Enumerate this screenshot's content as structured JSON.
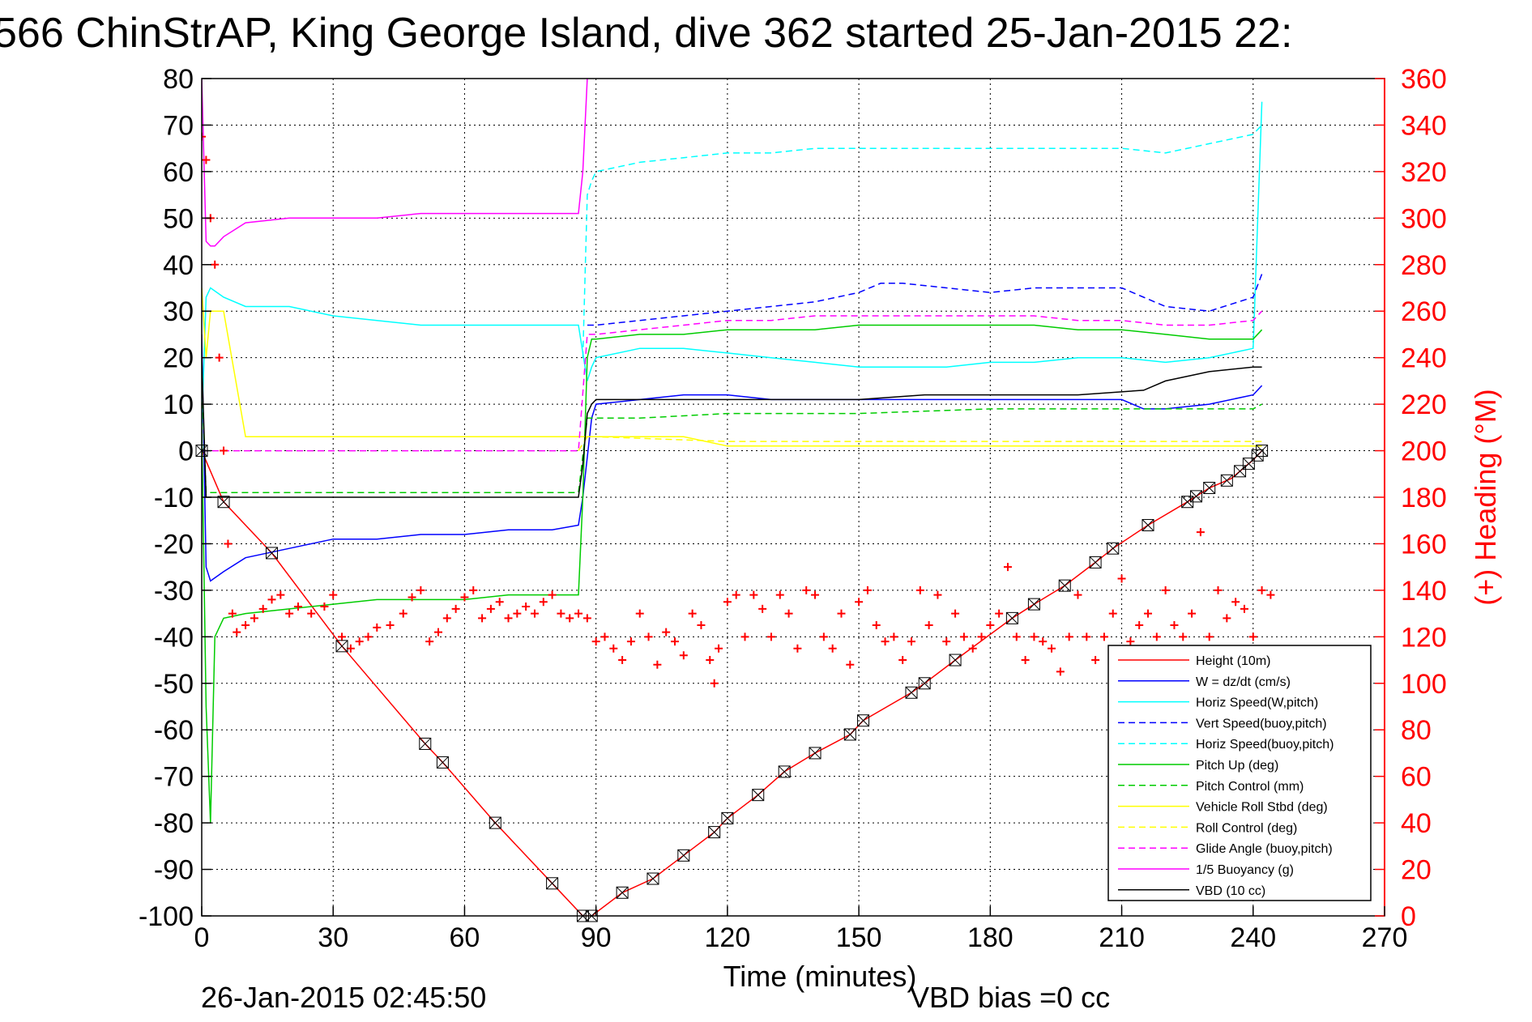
{
  "chart_data": {
    "type": "line",
    "title": "566 ChinStrAP, King George Island, dive 362 started 25-Jan-2015 22:",
    "xlabel": "Time (minutes)",
    "ylabel_right": "(+) Heading (°M)",
    "xlim": [
      0,
      270
    ],
    "ylim_left": [
      -100,
      80
    ],
    "ylim_right": [
      0,
      360
    ],
    "x_ticks": [
      "0",
      "30",
      "60",
      "90",
      "120",
      "150",
      "180",
      "210",
      "240",
      "270"
    ],
    "y_left_ticks": [
      "80",
      "70",
      "60",
      "50",
      "40",
      "30",
      "20",
      "10",
      "0",
      "-10",
      "-20",
      "-30",
      "-40",
      "-50",
      "-60",
      "-70",
      "-80",
      "-90",
      "-100"
    ],
    "y_right_ticks": [
      "360",
      "340",
      "320",
      "300",
      "280",
      "260",
      "240",
      "220",
      "200",
      "180",
      "160",
      "140",
      "120",
      "100",
      "80",
      "60",
      "40",
      "20",
      "0"
    ],
    "grid": true,
    "legend_position": "bottom-right",
    "footer_date": "26-Jan-2015 02:45:50",
    "footer_vbd": "VBD bias =0 cc",
    "legend": [
      {
        "label": "Height (10m)",
        "color": "#ff0000",
        "dash": "solid"
      },
      {
        "label": "W = dz/dt (cm/s)",
        "color": "#0000ff",
        "dash": "solid"
      },
      {
        "label": "Horiz Speed(W,pitch)",
        "color": "#00ffff",
        "dash": "solid"
      },
      {
        "label": "Vert Speed(buoy,pitch)",
        "color": "#0000ff",
        "dash": "dashed"
      },
      {
        "label": "Horiz Speed(buoy,pitch)",
        "color": "#00ffff",
        "dash": "dashed"
      },
      {
        "label": "Pitch Up (deg)",
        "color": "#00cc00",
        "dash": "solid"
      },
      {
        "label": "Pitch Control (mm)",
        "color": "#00cc00",
        "dash": "dashed"
      },
      {
        "label": "Vehicle Roll Stbd (deg)",
        "color": "#ffff00",
        "dash": "solid"
      },
      {
        "label": "Roll Control (deg)",
        "color": "#ffff00",
        "dash": "dashed"
      },
      {
        "label": "Glide Angle (buoy,pitch)",
        "color": "#ff00ff",
        "dash": "dashed"
      },
      {
        "label": "1/5 Buoyancy (g)",
        "color": "#ff00ff",
        "dash": "solid"
      },
      {
        "label": "VBD (10 cc)",
        "color": "#000000",
        "dash": "solid"
      }
    ],
    "series": [
      {
        "name": "Height (10m)",
        "axis": "left",
        "color": "#ff0000",
        "dash": "solid",
        "x": [
          0,
          5,
          16,
          32,
          51,
          55,
          67,
          80,
          87,
          89,
          96,
          103,
          110,
          117,
          120,
          127,
          133,
          140,
          148,
          151,
          162,
          165,
          172,
          185,
          190,
          197,
          204,
          208,
          216,
          225,
          230,
          235,
          240,
          242
        ],
        "y": [
          0,
          -11,
          -22,
          -42,
          -63,
          -67,
          -80,
          -93,
          -100,
          -100,
          -95,
          -92,
          -87,
          -82,
          -79,
          -74,
          -69,
          -65,
          -61,
          -58,
          -52,
          -50,
          -45,
          -36,
          -33,
          -29,
          -24,
          -21,
          -16,
          -11,
          -8,
          -6,
          -2,
          0
        ]
      },
      {
        "name": "W = dz/dt (cm/s)",
        "axis": "left",
        "color": "#0000ff",
        "dash": "solid",
        "x": [
          0,
          1,
          2,
          5,
          10,
          20,
          30,
          40,
          50,
          60,
          70,
          80,
          86,
          87,
          89,
          90,
          100,
          110,
          120,
          130,
          140,
          150,
          160,
          170,
          180,
          190,
          200,
          210,
          215,
          220,
          230,
          240,
          242
        ],
        "y": [
          25,
          -25,
          -28,
          -26,
          -23,
          -21,
          -19,
          -19,
          -18,
          -18,
          -17,
          -17,
          -16,
          -10,
          7,
          10,
          11,
          12,
          12,
          11,
          11,
          11,
          11,
          11,
          11,
          11,
          11,
          11,
          9,
          9,
          10,
          12,
          14
        ]
      },
      {
        "name": "Horiz Speed(W,pitch)",
        "axis": "left",
        "color": "#00ffff",
        "dash": "solid",
        "x": [
          0,
          1,
          2,
          5,
          10,
          20,
          30,
          40,
          50,
          60,
          70,
          80,
          86,
          88,
          89,
          90,
          100,
          110,
          120,
          130,
          140,
          150,
          160,
          170,
          180,
          190,
          200,
          210,
          220,
          230,
          240,
          242
        ],
        "y": [
          5,
          33,
          35,
          33,
          31,
          31,
          29,
          28,
          27,
          27,
          27,
          27,
          27,
          15,
          18,
          20,
          22,
          22,
          21,
          20,
          19,
          18,
          18,
          18,
          19,
          19,
          20,
          20,
          19,
          20,
          22,
          75
        ]
      },
      {
        "name": "Vert Speed(buoy,pitch)",
        "axis": "left",
        "color": "#0000ff",
        "dash": "dashed",
        "x": [
          88,
          90,
          100,
          110,
          120,
          130,
          140,
          150,
          155,
          160,
          170,
          180,
          190,
          200,
          210,
          215,
          220,
          230,
          240,
          242
        ],
        "y": [
          27,
          27,
          28,
          29,
          30,
          31,
          32,
          34,
          36,
          36,
          35,
          34,
          35,
          35,
          35,
          33,
          31,
          30,
          33,
          38
        ]
      },
      {
        "name": "Horiz Speed(buoy,pitch)",
        "axis": "left",
        "color": "#00ffff",
        "dash": "dashed",
        "x": [
          87,
          88,
          89,
          90,
          100,
          110,
          120,
          130,
          140,
          150,
          160,
          170,
          180,
          190,
          200,
          210,
          220,
          230,
          240,
          242
        ],
        "y": [
          20,
          55,
          58,
          60,
          62,
          63,
          64,
          64,
          65,
          65,
          65,
          65,
          65,
          65,
          65,
          65,
          64,
          66,
          68,
          70
        ]
      },
      {
        "name": "Pitch Up (deg)",
        "axis": "left",
        "color": "#00cc00",
        "dash": "solid",
        "x": [
          0,
          1,
          2,
          3,
          5,
          10,
          20,
          30,
          40,
          50,
          60,
          70,
          80,
          86,
          87,
          88,
          89,
          90,
          100,
          110,
          120,
          130,
          140,
          150,
          160,
          170,
          180,
          190,
          200,
          210,
          220,
          230,
          240,
          242
        ],
        "y": [
          5,
          -55,
          -80,
          -40,
          -36,
          -35,
          -34,
          -33,
          -32,
          -32,
          -32,
          -31,
          -31,
          -31,
          -10,
          20,
          24,
          24,
          25,
          25,
          26,
          26,
          26,
          27,
          27,
          27,
          27,
          27,
          26,
          26,
          25,
          24,
          24,
          26
        ]
      },
      {
        "name": "Pitch Control (mm)",
        "axis": "left",
        "color": "#00cc00",
        "dash": "dashed",
        "x": [
          0,
          1,
          2,
          5,
          10,
          30,
          60,
          86,
          88,
          90,
          100,
          120,
          150,
          180,
          210,
          240,
          242
        ],
        "y": [
          15,
          -9,
          -9,
          -9,
          -9,
          -9,
          -9,
          -9,
          7,
          7,
          7,
          8,
          8,
          9,
          9,
          9,
          10
        ]
      },
      {
        "name": "Vehicle Roll Stbd (deg)",
        "axis": "left",
        "color": "#ffff00",
        "dash": "solid",
        "x": [
          0,
          1,
          2,
          5,
          10,
          20,
          30,
          40,
          50,
          60,
          70,
          80,
          86,
          88,
          89,
          90,
          100,
          110,
          120,
          130,
          140,
          150,
          160,
          170,
          180,
          190,
          200,
          210,
          220,
          230,
          240,
          242
        ],
        "y": [
          35,
          20,
          30,
          30,
          3,
          3,
          3,
          3,
          3,
          3,
          3,
          3,
          3,
          3,
          3,
          3,
          3,
          3,
          1,
          1,
          1,
          1,
          1,
          1,
          1,
          1,
          1,
          1,
          1,
          1,
          1,
          1
        ]
      },
      {
        "name": "Roll Control (deg)",
        "axis": "left",
        "color": "#ffff00",
        "dash": "dashed",
        "x": [
          86,
          88,
          90,
          120,
          150,
          180,
          210,
          240,
          242
        ],
        "y": [
          0,
          3,
          3,
          2,
          2,
          2,
          2,
          2,
          2
        ]
      },
      {
        "name": "Glide Angle (buoy,pitch)",
        "axis": "left",
        "color": "#ff00ff",
        "dash": "dashed",
        "x": [
          0,
          1,
          2,
          5,
          30,
          60,
          86,
          88,
          90,
          100,
          110,
          120,
          130,
          140,
          150,
          160,
          170,
          180,
          190,
          200,
          210,
          220,
          230,
          240,
          242
        ],
        "y": [
          0,
          0,
          0,
          0,
          0,
          0,
          0,
          25,
          25,
          26,
          27,
          28,
          28,
          29,
          29,
          29,
          29,
          29,
          29,
          28,
          28,
          27,
          27,
          28,
          30
        ]
      },
      {
        "name": "1/5 Buoyancy (g)",
        "axis": "left",
        "color": "#ff00ff",
        "dash": "solid",
        "x": [
          0,
          1,
          2,
          3,
          5,
          10,
          20,
          30,
          40,
          50,
          60,
          70,
          80,
          86,
          87,
          88
        ],
        "y": [
          80,
          45,
          44,
          44,
          46,
          49,
          50,
          50,
          50,
          51,
          51,
          51,
          51,
          51,
          60,
          80
        ]
      },
      {
        "name": "VBD (10 cc)",
        "axis": "left",
        "color": "#000000",
        "dash": "solid",
        "x": [
          0,
          1,
          5,
          30,
          60,
          86,
          87,
          88,
          89,
          90,
          100,
          120,
          150,
          165,
          180,
          200,
          215,
          220,
          225,
          230,
          240,
          242
        ],
        "y": [
          20,
          -10,
          -10,
          -10,
          -10,
          -10,
          -3,
          8,
          10,
          11,
          11,
          11,
          11,
          12,
          12,
          12,
          13,
          15,
          16,
          17,
          18,
          18
        ]
      },
      {
        "name": "Heading",
        "axis": "right",
        "color": "#ff0000",
        "dash": "markers",
        "x": [
          0,
          1,
          2,
          3,
          4,
          5,
          6,
          7,
          8,
          10,
          12,
          14,
          16,
          18,
          20,
          22,
          25,
          28,
          30,
          32,
          34,
          36,
          38,
          40,
          43,
          46,
          48,
          50,
          52,
          54,
          56,
          58,
          60,
          62,
          64,
          66,
          68,
          70,
          72,
          74,
          76,
          78,
          80,
          82,
          84,
          86,
          88,
          90,
          92,
          94,
          96,
          98,
          100,
          102,
          104,
          106,
          108,
          110,
          112,
          114,
          116,
          117,
          118,
          120,
          122,
          124,
          126,
          128,
          130,
          132,
          134,
          136,
          138,
          140,
          142,
          144,
          146,
          148,
          150,
          152,
          154,
          156,
          158,
          160,
          162,
          164,
          166,
          168,
          170,
          172,
          174,
          176,
          178,
          180,
          182,
          184,
          186,
          188,
          190,
          192,
          194,
          196,
          198,
          200,
          202,
          204,
          206,
          208,
          210,
          212,
          214,
          216,
          218,
          220,
          222,
          224,
          226,
          228,
          230,
          232,
          234,
          236,
          238,
          240,
          242,
          244
        ],
        "y": [
          335,
          325,
          300,
          280,
          240,
          200,
          160,
          130,
          122,
          125,
          128,
          132,
          136,
          138,
          130,
          133,
          130,
          133,
          138,
          120,
          115,
          118,
          120,
          124,
          125,
          130,
          137,
          140,
          118,
          122,
          128,
          132,
          137,
          140,
          128,
          132,
          135,
          128,
          130,
          133,
          130,
          135,
          138,
          130,
          128,
          130,
          128,
          118,
          120,
          115,
          110,
          118,
          130,
          120,
          108,
          122,
          118,
          112,
          130,
          125,
          110,
          100,
          115,
          135,
          138,
          120,
          138,
          132,
          120,
          138,
          130,
          115,
          140,
          138,
          120,
          115,
          130,
          108,
          135,
          140,
          125,
          118,
          120,
          110,
          118,
          140,
          125,
          138,
          118,
          130,
          120,
          115,
          120,
          125,
          130,
          150,
          120,
          110,
          120,
          118,
          115,
          105,
          120,
          138,
          120,
          110,
          120,
          130,
          145,
          118,
          125,
          130,
          120,
          140,
          125,
          120,
          130,
          165,
          120,
          140,
          128,
          135,
          132,
          120,
          140,
          138
        ]
      }
    ],
    "height_markers_x": [
      0,
      5,
      16,
      32,
      51,
      55,
      67,
      80,
      87,
      89,
      96,
      103,
      110,
      117,
      120,
      127,
      133,
      140,
      148,
      151,
      162,
      165,
      172,
      185,
      190,
      197,
      204,
      208,
      216,
      225,
      227,
      230,
      234,
      237,
      239,
      241,
      242
    ]
  }
}
